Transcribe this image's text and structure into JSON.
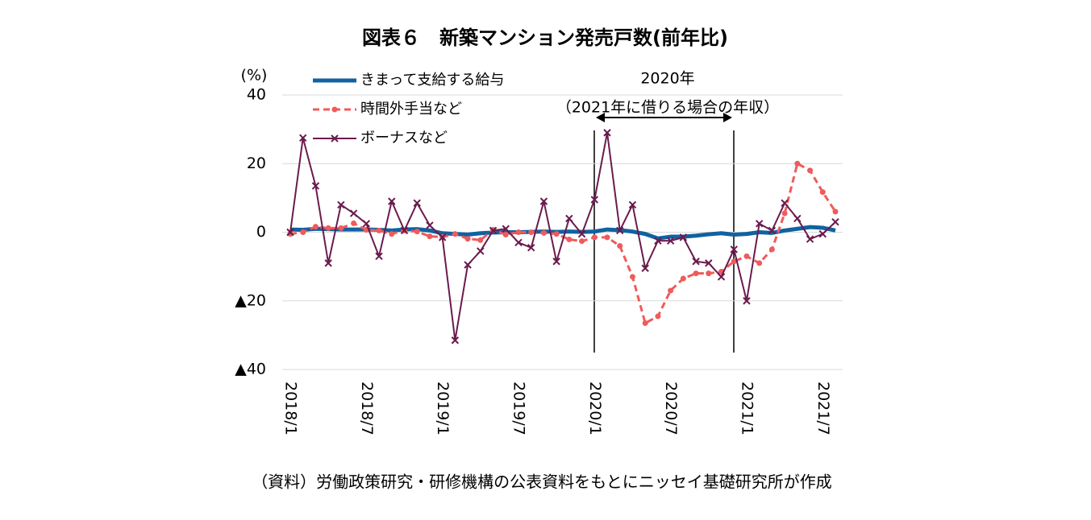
{
  "chart_data": {
    "type": "line",
    "title": "図表６　新築マンション発売戸数(前年比)",
    "y_label": "(%)",
    "source": "（資料）労働政策研究・研修機構の公表資料をもとにニッセイ基礎研究所が作成",
    "annotations": [
      "2020年",
      "（2021年に借りる場合の年収）"
    ],
    "categories": [
      "2018/1",
      null,
      null,
      null,
      null,
      null,
      "2018/7",
      null,
      null,
      null,
      null,
      null,
      "2019/1",
      null,
      null,
      null,
      null,
      null,
      "2019/7",
      null,
      null,
      null,
      null,
      null,
      "2020/1",
      null,
      null,
      null,
      null,
      null,
      "2020/7",
      null,
      null,
      null,
      null,
      null,
      "2021/1",
      null,
      null,
      null,
      null,
      null,
      "2021/7",
      null
    ],
    "ylim": [
      -40,
      40
    ],
    "yticks": [
      {
        "value": -40,
        "label": "▲40"
      },
      {
        "value": -20,
        "label": "▲20"
      },
      0,
      20,
      40
    ],
    "grid": true,
    "series": [
      {
        "name": "きまって支給する給与",
        "color": "#1162a0",
        "line_style": "solid",
        "marker": null,
        "values": [
          0.8,
          0.7,
          1.0,
          0.9,
          0.8,
          0.8,
          0.8,
          0.7,
          0.5,
          0.8,
          0.9,
          0.5,
          -0.3,
          -0.5,
          -0.7,
          -0.3,
          -0.1,
          0,
          0,
          0.1,
          0.2,
          0.1,
          0.2,
          0.1,
          0.2,
          0.8,
          0.6,
          0.2,
          -0.5,
          -1.8,
          -1.3,
          -1.3,
          -1.0,
          -0.6,
          -0.3,
          -0.7,
          -0.5,
          0,
          -0.2,
          0.5,
          1.0,
          1.5,
          1.3,
          0.5
        ]
      },
      {
        "name": "時間外手当など",
        "color": "#ef5b5b",
        "line_style": "dashed",
        "marker": "circle",
        "values": [
          -0.5,
          0,
          1.6,
          1.2,
          1.2,
          2.6,
          0.7,
          0.5,
          -0.5,
          0.5,
          0.2,
          -1.2,
          -1.4,
          -0.5,
          -1.9,
          -2.3,
          0.7,
          -0.7,
          0,
          0,
          -0.2,
          -0.5,
          -2.1,
          -2.6,
          -1.5,
          -1.5,
          -4,
          -13,
          -26.5,
          -24.5,
          -17,
          -13.5,
          -12,
          -12,
          -11.5,
          -8.5,
          -7,
          -9,
          -5,
          5.5,
          20,
          18,
          11.7,
          6
        ]
      },
      {
        "name": "ボーナスなど",
        "color": "#6a1b4d",
        "line_style": "solid",
        "marker": "x",
        "values": [
          0,
          27.5,
          13.5,
          -9,
          8,
          5.5,
          2.5,
          -7,
          9,
          0.5,
          8.5,
          2,
          -1.5,
          -31.5,
          -9.5,
          -5.5,
          0.5,
          1,
          -3,
          -4.5,
          9,
          -8.5,
          4,
          -0.5,
          9.5,
          29,
          0.5,
          8,
          -10.5,
          -2.5,
          -2.5,
          -1.5,
          -8.5,
          -9,
          -13,
          -5,
          -20,
          2.5,
          0.5,
          8.5,
          4,
          -2,
          -0.5,
          3
        ]
      }
    ]
  }
}
